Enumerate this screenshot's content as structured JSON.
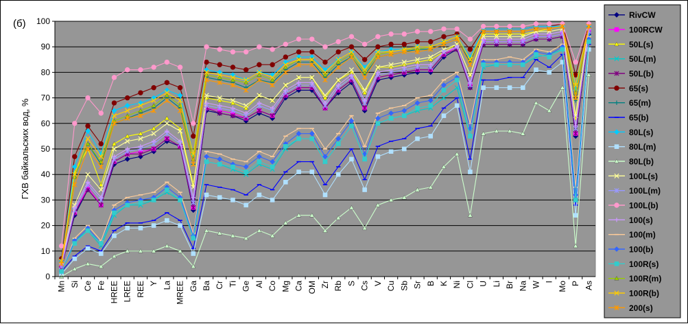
{
  "chart_data": {
    "type": "line",
    "panel_label": "(б)",
    "ylabel": "ГХВ байкальских вод, %",
    "ylim": [
      0,
      100
    ],
    "yticks": [
      0,
      10,
      20,
      30,
      40,
      50,
      60,
      70,
      80,
      90,
      100
    ],
    "grid": true,
    "legend_placement": "right",
    "categories": [
      "Mn",
      "Si",
      "Ce",
      "Fe",
      "HREE",
      "LREE",
      "REE",
      "Y",
      "La",
      "MREE",
      "Ga",
      "Ba",
      "Cr",
      "Ti",
      "Ge",
      "Al",
      "Co",
      "Mg",
      "Ca",
      "OM",
      "Zr",
      "Rb",
      "S",
      "Cs",
      "V",
      "Cu",
      "Sb",
      "Sr",
      "B",
      "K",
      "Ni",
      "Cl",
      "U",
      "Li",
      "Br",
      "Na",
      "W",
      "I",
      "Mo",
      "P",
      "As"
    ],
    "x_labels": [
      "Mn",
      "Si",
      "Ce",
      "Fe",
      "HREE",
      "LREE",
      "REE",
      "Y",
      "La",
      "MREE",
      "Ga",
      "Ba",
      "Cr",
      "Ti",
      "Ge",
      "Al",
      "Co",
      "Mg",
      "Ca",
      "OM",
      "Zr",
      "Rb",
      "S",
      "Cs",
      "V",
      "Cu",
      "Sb",
      "Sr",
      "B",
      "K",
      "Ni",
      "Cl",
      "U",
      "Li",
      "Br",
      "Na",
      "W",
      "I",
      "Mo",
      "P",
      "As"
    ],
    "series": [
      {
        "name": "RivCW",
        "color": "#000080",
        "values": [
          4,
          24,
          34,
          28,
          44,
          46,
          47,
          49,
          53,
          51,
          26,
          65,
          64,
          63,
          61,
          64,
          62,
          70,
          73,
          73,
          66,
          72,
          76,
          65,
          77,
          78,
          79,
          80,
          80,
          86,
          89,
          74,
          91,
          91,
          91,
          91,
          93,
          93,
          94,
          55,
          95
        ]
      },
      {
        "name": "100RCW",
        "color": "#ff00ff",
        "values": [
          4,
          25,
          35,
          28,
          45,
          48,
          49,
          50,
          54,
          51,
          27,
          66,
          65,
          64,
          62,
          65,
          63,
          71,
          74,
          74,
          66,
          73,
          77,
          66,
          78,
          79,
          80,
          81,
          81,
          87,
          90,
          75,
          92,
          92,
          92,
          92,
          94,
          94,
          95,
          56,
          96
        ]
      },
      {
        "name": "50L(s)",
        "color": "#ffff00",
        "values": [
          6,
          41,
          50,
          36,
          52,
          55,
          56,
          58,
          62,
          58,
          36,
          70,
          69,
          68,
          66,
          71,
          69,
          75,
          78,
          78,
          70,
          77,
          80,
          72,
          82,
          82,
          83,
          84,
          85,
          88,
          91,
          79,
          95,
          95,
          95,
          95,
          96,
          97,
          98,
          62,
          98
        ]
      },
      {
        "name": "50L(m)",
        "color": "#00cccc",
        "values": [
          2,
          14,
          18,
          12,
          24,
          28,
          28,
          30,
          33,
          30,
          15,
          45,
          44,
          42,
          40,
          44,
          42,
          50,
          54,
          54,
          45,
          52,
          59,
          46,
          60,
          62,
          63,
          65,
          66,
          70,
          74,
          55,
          82,
          83,
          83,
          83,
          86,
          87,
          89,
          30,
          95
        ]
      },
      {
        "name": "50L(b)",
        "color": "#800080",
        "values": [
          3,
          25,
          34,
          28,
          45,
          48,
          48,
          50,
          54,
          51,
          27,
          66,
          64,
          63,
          62,
          65,
          63,
          71,
          74,
          74,
          66,
          73,
          77,
          66,
          78,
          79,
          80,
          81,
          81,
          87,
          89,
          74,
          91,
          91,
          91,
          91,
          93,
          93,
          94,
          56,
          96
        ]
      },
      {
        "name": "65(s)",
        "color": "#800000",
        "values": [
          7,
          47,
          59,
          52,
          68,
          70,
          72,
          74,
          76,
          74,
          55,
          84,
          83,
          82,
          81,
          83,
          83,
          86,
          88,
          88,
          84,
          88,
          90,
          85,
          90,
          91,
          91,
          92,
          92,
          94,
          95,
          89,
          97,
          97,
          97,
          97,
          98,
          98,
          99,
          79,
          99
        ]
      },
      {
        "name": "65(m)",
        "color": "#008080",
        "values": [
          5,
          39,
          52,
          44,
          60,
          62,
          64,
          66,
          70,
          66,
          44,
          78,
          77,
          76,
          74,
          77,
          76,
          81,
          84,
          84,
          78,
          83,
          86,
          79,
          86,
          87,
          88,
          89,
          89,
          91,
          93,
          84,
          96,
          96,
          96,
          96,
          97,
          97,
          98,
          69,
          98
        ]
      },
      {
        "name": "65(b)",
        "color": "#0000ff",
        "values": [
          2,
          8,
          12,
          10,
          18,
          21,
          21,
          22,
          25,
          22,
          11,
          36,
          35,
          34,
          32,
          36,
          34,
          41,
          45,
          45,
          36,
          43,
          50,
          38,
          51,
          53,
          54,
          58,
          59,
          66,
          70,
          46,
          77,
          77,
          78,
          78,
          85,
          82,
          87,
          28,
          91
        ]
      },
      {
        "name": "80L(s)",
        "color": "#00ccff",
        "values": [
          6,
          43,
          57,
          48,
          65,
          67,
          68,
          70,
          73,
          71,
          48,
          81,
          80,
          79,
          77,
          80,
          79,
          84,
          86,
          86,
          81,
          85,
          88,
          82,
          88,
          89,
          89,
          90,
          90,
          92,
          94,
          86,
          97,
          97,
          97,
          97,
          98,
          98,
          98,
          73,
          98
        ]
      },
      {
        "name": "80L(m)",
        "color": "#b0e0ff",
        "values": [
          1,
          7,
          11,
          9,
          16,
          19,
          19,
          20,
          22,
          20,
          9,
          32,
          31,
          30,
          28,
          32,
          30,
          37,
          41,
          41,
          32,
          40,
          46,
          34,
          47,
          49,
          50,
          54,
          55,
          63,
          67,
          41,
          74,
          74,
          74,
          74,
          81,
          80,
          84,
          24,
          89
        ]
      },
      {
        "name": "80L(b)",
        "color": "#ccffcc",
        "values": [
          0,
          3,
          5,
          4,
          8,
          10,
          10,
          10,
          12,
          10,
          4,
          18,
          17,
          16,
          15,
          18,
          16,
          21,
          24,
          24,
          18,
          23,
          27,
          19,
          28,
          30,
          31,
          34,
          35,
          43,
          48,
          24,
          56,
          57,
          57,
          56,
          68,
          65,
          74,
          12,
          79
        ]
      },
      {
        "name": "100L(s)",
        "color": "#ffff99",
        "values": [
          6,
          28,
          40,
          34,
          50,
          53,
          54,
          56,
          60,
          57,
          35,
          71,
          70,
          69,
          67,
          71,
          69,
          75,
          78,
          78,
          71,
          77,
          81,
          73,
          82,
          83,
          84,
          85,
          86,
          89,
          91,
          79,
          94,
          94,
          94,
          94,
          96,
          96,
          97,
          63,
          98
        ]
      },
      {
        "name": "100L(m)",
        "color": "#9999ff",
        "values": [
          4,
          26,
          36,
          30,
          46,
          49,
          50,
          52,
          56,
          52,
          29,
          67,
          66,
          65,
          63,
          67,
          65,
          72,
          75,
          75,
          67,
          74,
          78,
          68,
          79,
          80,
          81,
          82,
          82,
          88,
          90,
          75,
          92,
          92,
          92,
          92,
          94,
          94,
          95,
          58,
          96
        ]
      },
      {
        "name": "100L(b)",
        "color": "#ff99cc",
        "values": [
          12,
          60,
          70,
          64,
          78,
          81,
          81,
          82,
          84,
          82,
          60,
          90,
          89,
          88,
          88,
          90,
          89,
          91,
          93,
          93,
          90,
          92,
          94,
          91,
          94,
          95,
          95,
          96,
          96,
          97,
          97,
          93,
          98,
          98,
          98,
          98,
          99,
          99,
          99,
          84,
          99
        ]
      },
      {
        "name": "100(s)",
        "color": "#cc99ff",
        "values": [
          5,
          27,
          37,
          31,
          47,
          50,
          51,
          53,
          57,
          53,
          31,
          68,
          67,
          66,
          64,
          68,
          66,
          73,
          76,
          76,
          68,
          75,
          79,
          69,
          80,
          81,
          82,
          83,
          83,
          88,
          90,
          76,
          93,
          93,
          93,
          93,
          95,
          95,
          96,
          59,
          97
        ]
      },
      {
        "name": "100(m)",
        "color": "#ffcc99",
        "values": [
          2,
          15,
          20,
          14,
          28,
          31,
          32,
          33,
          37,
          33,
          17,
          49,
          48,
          46,
          45,
          49,
          47,
          55,
          58,
          58,
          50,
          56,
          63,
          51,
          64,
          66,
          67,
          70,
          71,
          77,
          80,
          60,
          85,
          85,
          86,
          85,
          89,
          88,
          91,
          35,
          94
        ]
      },
      {
        "name": "100(b)",
        "color": "#3366ff",
        "values": [
          2,
          14,
          19,
          13,
          26,
          29,
          30,
          31,
          35,
          31,
          16,
          47,
          46,
          44,
          43,
          47,
          45,
          52,
          56,
          56,
          47,
          54,
          61,
          48,
          62,
          64,
          65,
          68,
          69,
          75,
          78,
          58,
          84,
          84,
          84,
          84,
          88,
          87,
          90,
          32,
          93
        ]
      },
      {
        "name": "100R(s)",
        "color": "#33cccc",
        "values": [
          2,
          13,
          18,
          13,
          25,
          28,
          29,
          30,
          34,
          30,
          15,
          45,
          44,
          43,
          41,
          45,
          43,
          51,
          54,
          54,
          45,
          52,
          59,
          46,
          60,
          62,
          63,
          66,
          67,
          73,
          77,
          55,
          83,
          83,
          83,
          83,
          87,
          86,
          89,
          30,
          92
        ]
      },
      {
        "name": "100R(m)",
        "color": "#99cc00",
        "values": [
          6,
          39,
          52,
          45,
          61,
          63,
          65,
          67,
          71,
          67,
          46,
          79,
          78,
          77,
          76,
          79,
          77,
          82,
          85,
          85,
          79,
          84,
          87,
          80,
          87,
          88,
          89,
          89,
          90,
          92,
          94,
          85,
          96,
          96,
          96,
          96,
          97,
          97,
          98,
          72,
          98
        ]
      },
      {
        "name": "100R(b)",
        "color": "#ffcc00",
        "values": [
          6,
          40,
          54,
          47,
          63,
          65,
          67,
          69,
          72,
          69,
          48,
          80,
          79,
          78,
          77,
          80,
          78,
          83,
          85,
          85,
          80,
          85,
          88,
          81,
          88,
          88,
          89,
          90,
          90,
          92,
          94,
          85,
          96,
          96,
          96,
          96,
          97,
          97,
          98,
          75,
          98
        ]
      },
      {
        "name": "200(s)",
        "color": "#ff9900",
        "values": [
          5,
          36,
          50,
          43,
          60,
          62,
          63,
          65,
          69,
          65,
          44,
          77,
          76,
          75,
          73,
          77,
          75,
          80,
          83,
          83,
          77,
          82,
          86,
          78,
          86,
          87,
          88,
          88,
          89,
          91,
          93,
          83,
          96,
          96,
          96,
          96,
          97,
          97,
          98,
          70,
          98
        ]
      }
    ]
  }
}
